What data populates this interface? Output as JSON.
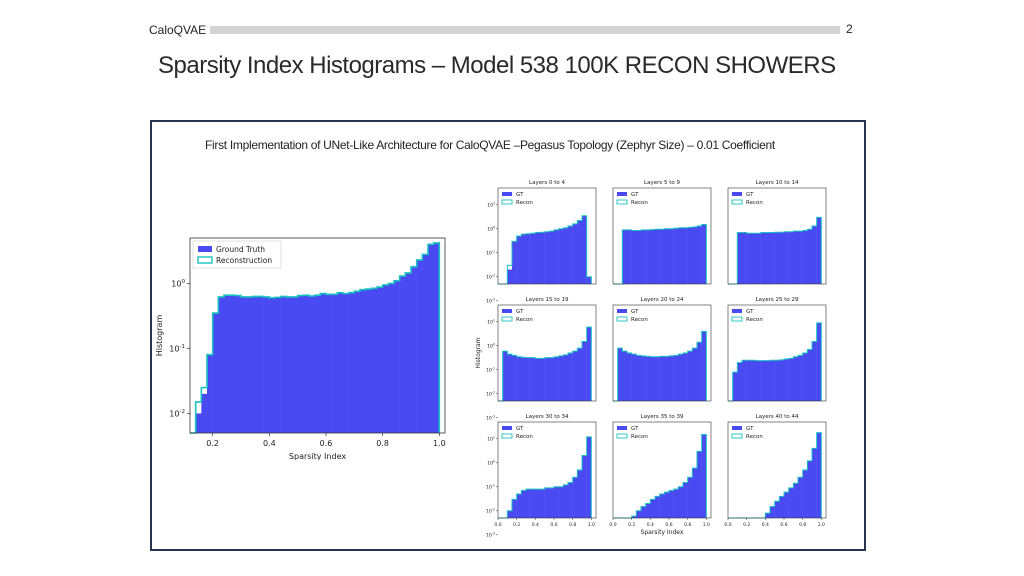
{
  "header": {
    "label": "CaloQVAE",
    "page_number": "2"
  },
  "title": "Sparsity Index Histograms – Model 538 100K RECON SHOWERS",
  "subtitle": "First Implementation of UNet-Like Architecture for CaloQVAE –Pegasus Topology (Zephyr Size) – 0.01 Coefficient",
  "colors": {
    "gt_fill": "#4a4af2",
    "recon_edge": "#19c2c0",
    "frame_border": "#27344f"
  },
  "chart_data": [
    {
      "type": "bar",
      "title": "",
      "xlabel": "Sparsity Index",
      "ylabel": "Histogram",
      "xlim": [
        0.12,
        1.02
      ],
      "ylim": [
        0.005,
        5
      ],
      "log_y": true,
      "x_ticks": [
        "0.2",
        "0.4",
        "0.6",
        "0.8",
        "1.0"
      ],
      "y_ticks": [
        "10^0",
        "10^-1",
        "10^-2"
      ],
      "legend": {
        "position": "top-left",
        "entries": [
          "Ground Truth",
          "Reconstruction"
        ]
      },
      "bin_edges": [
        0.12,
        0.14,
        0.16,
        0.18,
        0.2,
        0.22,
        0.24,
        0.26,
        0.28,
        0.3,
        0.32,
        0.34,
        0.36,
        0.38,
        0.4,
        0.42,
        0.44,
        0.46,
        0.48,
        0.5,
        0.52,
        0.54,
        0.56,
        0.58,
        0.6,
        0.62,
        0.64,
        0.66,
        0.68,
        0.7,
        0.72,
        0.74,
        0.76,
        0.78,
        0.8,
        0.82,
        0.84,
        0.86,
        0.88,
        0.9,
        0.92,
        0.94,
        0.96,
        0.98,
        1.0
      ],
      "series": [
        {
          "name": "Ground Truth",
          "values": [
            0,
            0.01,
            0.02,
            0.08,
            0.35,
            0.62,
            0.65,
            0.66,
            0.64,
            0.62,
            0.62,
            0.63,
            0.63,
            0.62,
            0.6,
            0.61,
            0.63,
            0.62,
            0.62,
            0.65,
            0.66,
            0.64,
            0.66,
            0.7,
            0.68,
            0.68,
            0.72,
            0.7,
            0.72,
            0.76,
            0.8,
            0.82,
            0.84,
            0.88,
            0.95,
            1.0,
            1.1,
            1.3,
            1.45,
            1.8,
            2.3,
            2.8,
            4.0,
            4.2
          ]
        },
        {
          "name": "Reconstruction",
          "values": [
            0,
            0.015,
            0.025,
            0.08,
            0.35,
            0.62,
            0.66,
            0.66,
            0.65,
            0.62,
            0.62,
            0.63,
            0.63,
            0.62,
            0.6,
            0.61,
            0.63,
            0.62,
            0.62,
            0.65,
            0.66,
            0.64,
            0.66,
            0.7,
            0.68,
            0.68,
            0.72,
            0.7,
            0.72,
            0.76,
            0.8,
            0.82,
            0.84,
            0.88,
            0.95,
            1.0,
            1.1,
            1.3,
            1.45,
            1.8,
            2.3,
            2.8,
            4.0,
            4.2
          ]
        }
      ]
    },
    {
      "type": "bar",
      "grid_layout": "3x3",
      "log_y": true,
      "ylim": [
        0.005,
        50
      ],
      "xlim": [
        0,
        1.05
      ],
      "y_ticks": [
        "10^1",
        "10^0",
        "10^-1",
        "10^-2",
        "10^-3"
      ],
      "x_ticks": [
        "0.0",
        "0.2",
        "0.4",
        "0.6",
        "0.8",
        "1.0"
      ],
      "xlabel": "Sparsity Index",
      "ylabel": "Histogram",
      "legend": {
        "position": "top-left",
        "entries": [
          "GT",
          "Recon"
        ]
      },
      "bins": 20,
      "panels": [
        {
          "title": "Layers 0 to 4",
          "gt": [
            0,
            0,
            0.02,
            0.3,
            0.5,
            0.6,
            0.62,
            0.65,
            0.7,
            0.72,
            0.75,
            0.8,
            0.9,
            1.0,
            1.1,
            1.3,
            1.6,
            2.2,
            3.5,
            0.01
          ],
          "recon": [
            0,
            0,
            0.03,
            0.3,
            0.5,
            0.6,
            0.62,
            0.65,
            0.7,
            0.72,
            0.75,
            0.8,
            0.9,
            1.0,
            1.1,
            1.3,
            1.6,
            2.2,
            3.5,
            0.01
          ]
        },
        {
          "title": "Layers 5 to 9",
          "gt": [
            0,
            0,
            0.9,
            0.9,
            0.85,
            0.85,
            0.9,
            0.9,
            0.92,
            0.95,
            0.95,
            1.0,
            1.0,
            1.05,
            1.1,
            1.1,
            1.15,
            1.2,
            1.3,
            1.5
          ],
          "recon": [
            0,
            0,
            0.9,
            0.9,
            0.85,
            0.85,
            0.9,
            0.9,
            0.92,
            0.95,
            0.95,
            1.0,
            1.0,
            1.05,
            1.1,
            1.1,
            1.15,
            1.2,
            1.3,
            1.5
          ]
        },
        {
          "title": "Layers 10 to 14",
          "gt": [
            0,
            0,
            0.7,
            0.7,
            0.65,
            0.65,
            0.65,
            0.7,
            0.7,
            0.7,
            0.72,
            0.72,
            0.75,
            0.75,
            0.8,
            0.8,
            0.85,
            0.95,
            1.3,
            3.0
          ],
          "recon": [
            0,
            0,
            0.7,
            0.7,
            0.65,
            0.65,
            0.65,
            0.7,
            0.7,
            0.7,
            0.72,
            0.72,
            0.75,
            0.75,
            0.8,
            0.8,
            0.85,
            0.95,
            1.3,
            3.0
          ]
        },
        {
          "title": "Layers 15 to 19",
          "gt": [
            0,
            0.6,
            0.45,
            0.4,
            0.35,
            0.33,
            0.32,
            0.32,
            0.3,
            0.3,
            0.32,
            0.32,
            0.35,
            0.38,
            0.42,
            0.5,
            0.6,
            0.8,
            1.5,
            6.0
          ],
          "recon": [
            0,
            0.6,
            0.45,
            0.4,
            0.35,
            0.33,
            0.32,
            0.32,
            0.3,
            0.3,
            0.32,
            0.32,
            0.35,
            0.38,
            0.42,
            0.5,
            0.6,
            0.8,
            1.5,
            6.0
          ]
        },
        {
          "title": "Layers 20 to 24",
          "gt": [
            0,
            0.8,
            0.6,
            0.5,
            0.45,
            0.4,
            0.38,
            0.36,
            0.35,
            0.35,
            0.36,
            0.36,
            0.38,
            0.4,
            0.45,
            0.5,
            0.6,
            0.8,
            1.4,
            4.0
          ],
          "recon": [
            0,
            0.8,
            0.6,
            0.5,
            0.45,
            0.4,
            0.38,
            0.36,
            0.35,
            0.35,
            0.36,
            0.36,
            0.38,
            0.4,
            0.45,
            0.5,
            0.6,
            0.8,
            1.4,
            4.0
          ]
        },
        {
          "title": "Layers 25 to 29",
          "gt": [
            0,
            0.08,
            0.2,
            0.25,
            0.25,
            0.25,
            0.24,
            0.24,
            0.24,
            0.25,
            0.25,
            0.26,
            0.28,
            0.3,
            0.35,
            0.4,
            0.5,
            0.7,
            1.5,
            9.0
          ],
          "recon": [
            0,
            0.08,
            0.2,
            0.25,
            0.25,
            0.25,
            0.24,
            0.24,
            0.24,
            0.25,
            0.25,
            0.26,
            0.28,
            0.3,
            0.35,
            0.4,
            0.5,
            0.7,
            1.5,
            9.0
          ]
        },
        {
          "title": "Layers 30 to 34",
          "gt": [
            0,
            0.002,
            0.01,
            0.03,
            0.05,
            0.07,
            0.08,
            0.08,
            0.08,
            0.08,
            0.09,
            0.09,
            0.1,
            0.1,
            0.12,
            0.15,
            0.25,
            0.5,
            2.0,
            12.0
          ],
          "recon": [
            0,
            0.002,
            0.01,
            0.03,
            0.05,
            0.07,
            0.08,
            0.08,
            0.08,
            0.08,
            0.09,
            0.09,
            0.1,
            0.1,
            0.12,
            0.15,
            0.25,
            0.5,
            2.0,
            12.0
          ]
        },
        {
          "title": "Layers 35 to 39",
          "gt": [
            0,
            0,
            0.0015,
            0.003,
            0.006,
            0.01,
            0.015,
            0.02,
            0.03,
            0.04,
            0.05,
            0.06,
            0.07,
            0.08,
            0.1,
            0.15,
            0.25,
            0.6,
            3.0,
            15.0
          ],
          "recon": [
            0,
            0,
            0.004,
            0.004,
            0.006,
            0.01,
            0.015,
            0.02,
            0.03,
            0.04,
            0.05,
            0.06,
            0.07,
            0.08,
            0.1,
            0.15,
            0.25,
            0.6,
            3.0,
            15.0
          ]
        },
        {
          "title": "Layers 40 to 44",
          "gt": [
            0,
            0,
            0,
            0,
            0.0015,
            0.003,
            0.002,
            0.004,
            0.008,
            0.015,
            0.025,
            0.04,
            0.06,
            0.09,
            0.14,
            0.25,
            0.5,
            1.2,
            4.0,
            18.0
          ],
          "recon": [
            0,
            0,
            0,
            0,
            0.0015,
            0.003,
            0.004,
            0.004,
            0.008,
            0.015,
            0.025,
            0.04,
            0.06,
            0.09,
            0.14,
            0.25,
            0.5,
            1.2,
            4.0,
            18.0
          ]
        }
      ]
    }
  ]
}
